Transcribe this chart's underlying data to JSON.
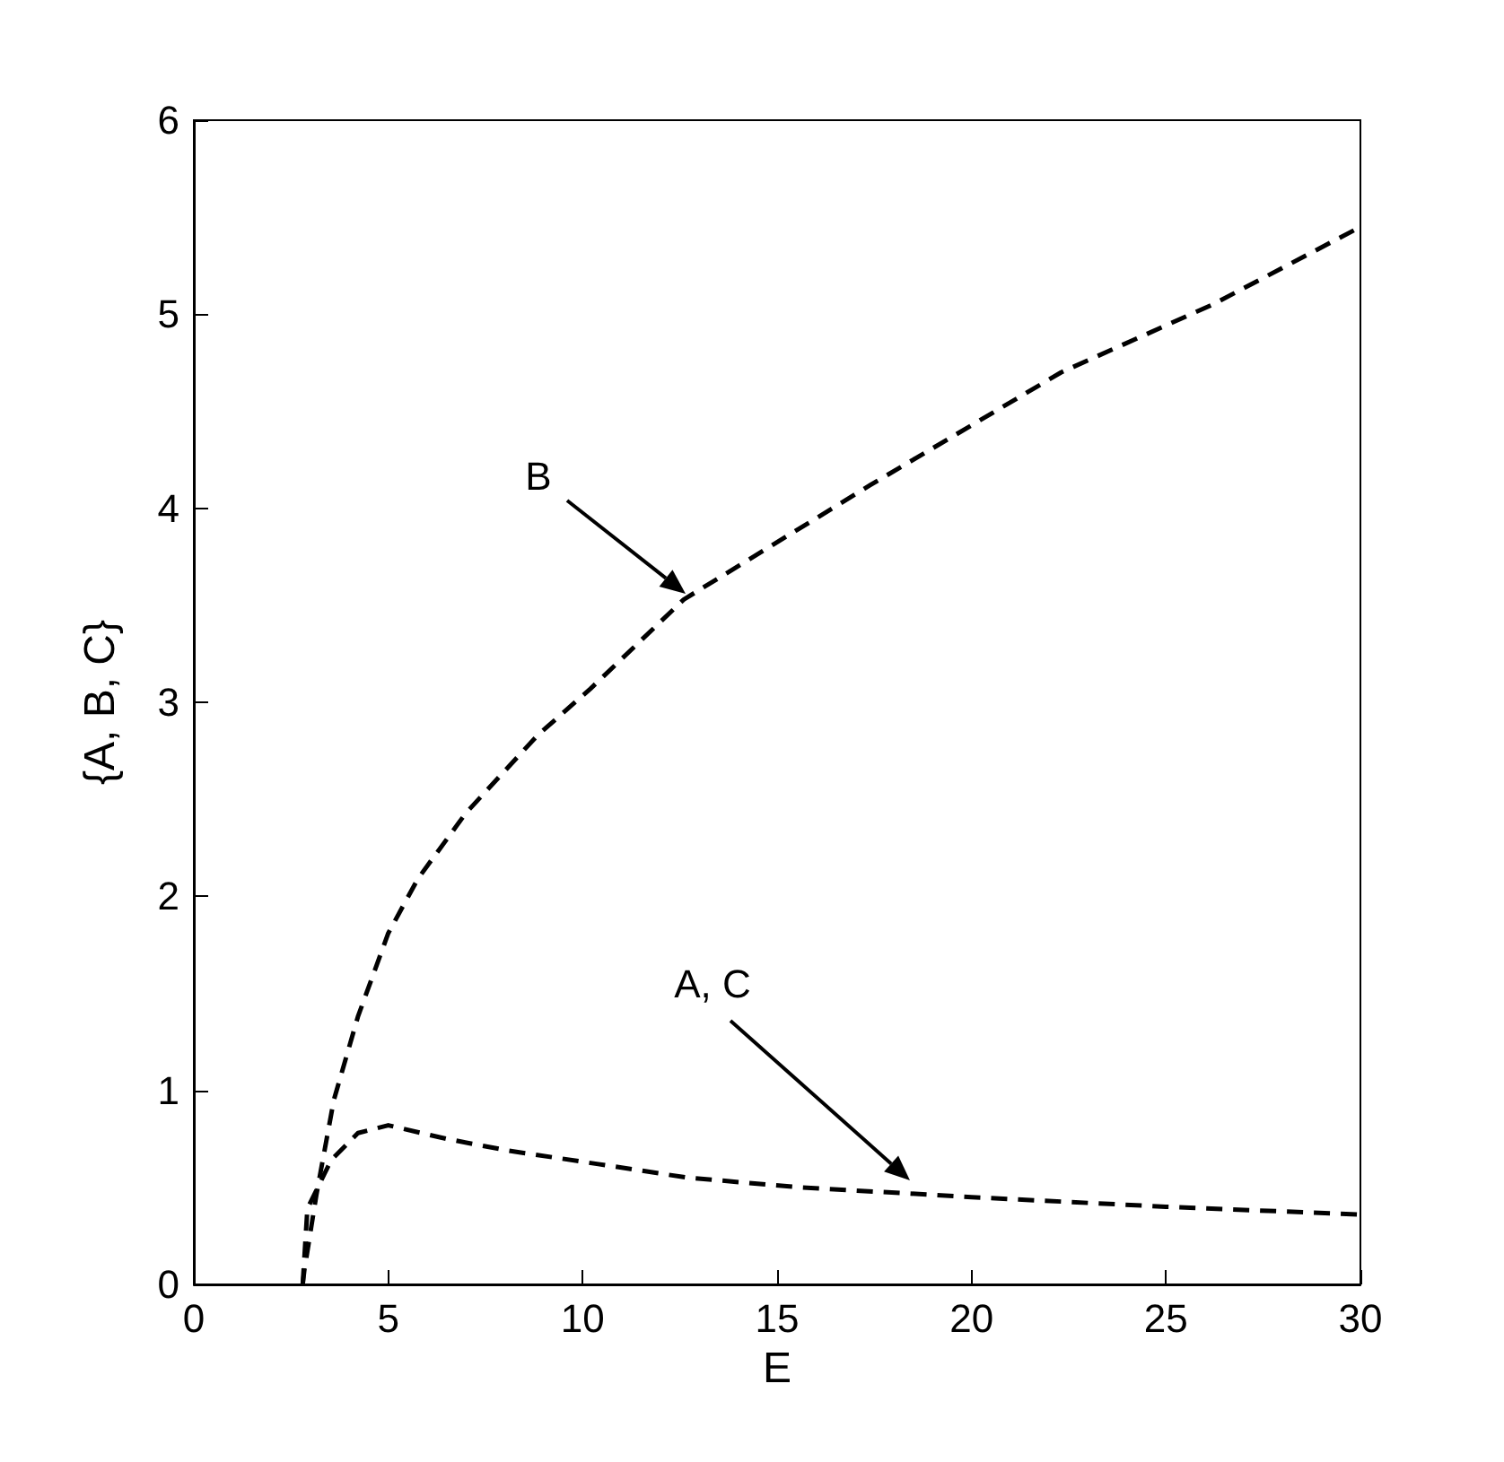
{
  "chart_data": {
    "type": "line",
    "xlabel": "E",
    "ylabel": "{A, B, C}",
    "xlim": [
      0,
      30
    ],
    "xticks": [
      0,
      5,
      10,
      15,
      20,
      25,
      30
    ],
    "ylim": [
      0,
      6
    ],
    "yticks": [
      0,
      1,
      2,
      3,
      4,
      5,
      6
    ],
    "grid": false,
    "marker": "none",
    "line_style": "dashed",
    "series": [
      {
        "color": "#000000",
        "x": [
          2.8,
          2.84,
          3.15,
          3.6,
          4.22,
          5.0,
          5.76,
          7.0,
          8.84,
          10.2,
          12.6,
          17.4,
          22.3,
          26.2,
          30
        ],
        "values": [
          0,
          0.07,
          0.46,
          0.95,
          1.38,
          1.81,
          2.09,
          2.43,
          2.83,
          3.07,
          3.53,
          4.12,
          4.7,
          5.05,
          5.45
        ]
      },
      {
        "color": "#000000",
        "x": [
          2.8,
          2.92,
          3.53,
          4.22,
          5.0,
          6.5,
          8.07,
          10.4,
          12.7,
          15.6,
          20,
          25,
          30
        ],
        "values": [
          0,
          0.39,
          0.64,
          0.78,
          0.82,
          0.75,
          0.69,
          0.62,
          0.55,
          0.5,
          0.45,
          0.4,
          0.36
        ]
      }
    ],
    "annotations": [
      "B",
      "A, C"
    ]
  }
}
